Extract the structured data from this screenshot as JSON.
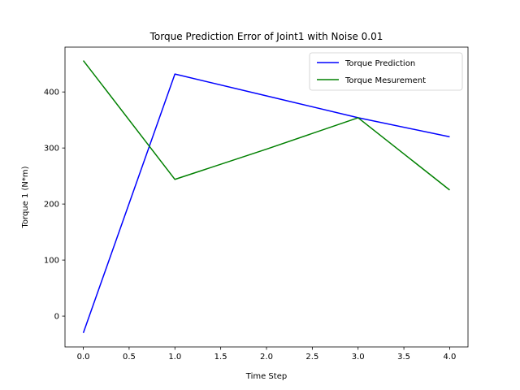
{
  "chart_data": {
    "type": "line",
    "title": "Torque Prediction Error of Joint1 with Noise 0.01",
    "xlabel": "Time Step",
    "ylabel": "Torque 1 (N*m)",
    "x": [
      0,
      1,
      2,
      3,
      4
    ],
    "xlim": [
      -0.2,
      4.2
    ],
    "ylim": [
      -55,
      480
    ],
    "xticks": [
      0.0,
      0.5,
      1.0,
      1.5,
      2.0,
      2.5,
      3.0,
      3.5,
      4.0
    ],
    "xtick_labels": [
      "0.0",
      "0.5",
      "1.0",
      "1.5",
      "2.0",
      "2.5",
      "3.0",
      "3.5",
      "4.0"
    ],
    "yticks": [
      0,
      100,
      200,
      300,
      400
    ],
    "ytick_labels": [
      "0",
      "100",
      "200",
      "300",
      "400"
    ],
    "grid": false,
    "legend_position": "top-right",
    "series": [
      {
        "name": "Torque Prediction",
        "color": "#0000ff",
        "values": [
          -30,
          432,
          393,
          354,
          320
        ]
      },
      {
        "name": "Torque Mesurement",
        "color": "#008000",
        "values": [
          456,
          244,
          298,
          354,
          225
        ]
      }
    ]
  }
}
